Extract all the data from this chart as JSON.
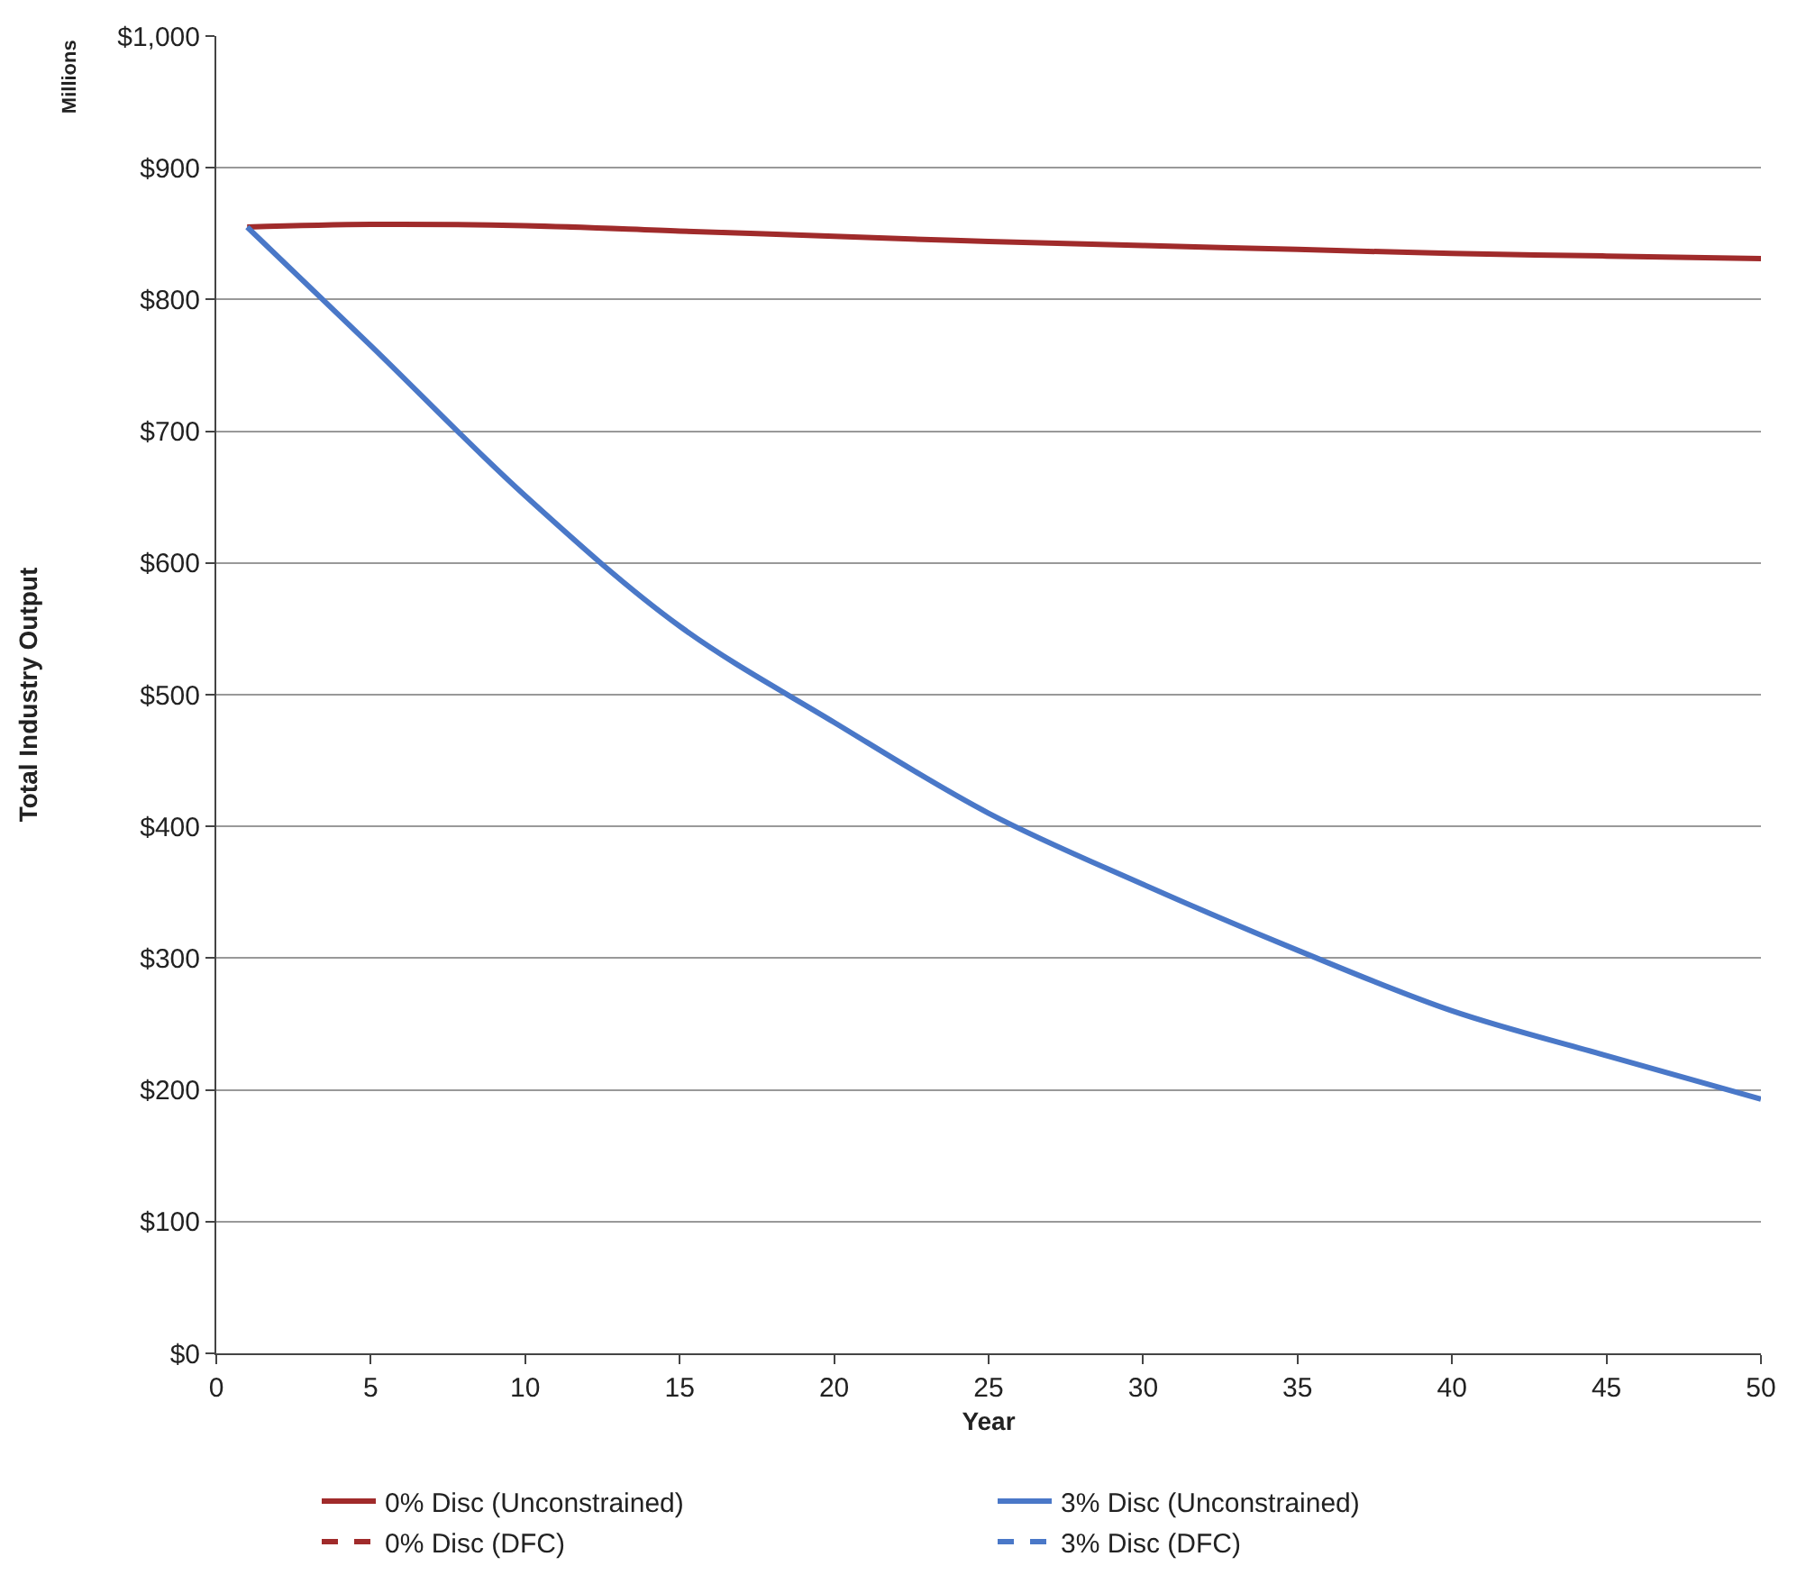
{
  "chart_data": {
    "type": "line",
    "xlabel": "Year",
    "ylabel": "Total Industry Output",
    "annotations": [
      "Millions"
    ],
    "xlim": [
      0,
      50
    ],
    "xticks": [
      0,
      5,
      10,
      15,
      20,
      25,
      30,
      35,
      40,
      45,
      50
    ],
    "ylim": [
      0,
      1000
    ],
    "yticks": [
      {
        "value": 0,
        "label": "$0"
      },
      {
        "value": 100,
        "label": "$100"
      },
      {
        "value": 200,
        "label": "$200"
      },
      {
        "value": 300,
        "label": "$300"
      },
      {
        "value": 400,
        "label": "$400"
      },
      {
        "value": 500,
        "label": "$500"
      },
      {
        "value": 600,
        "label": "$600"
      },
      {
        "value": 700,
        "label": "$700"
      },
      {
        "value": 800,
        "label": "$800"
      },
      {
        "value": 900,
        "label": "$900"
      },
      {
        "value": 1000,
        "label": "$1,000"
      }
    ],
    "grid": "y",
    "legend": "bottom",
    "marker": "none",
    "x": [
      1,
      5,
      10,
      15,
      20,
      25,
      30,
      35,
      40,
      45,
      50
    ],
    "series": [
      {
        "name": "0% Disc (Unconstrained)",
        "color": "#a02b2b",
        "line_style": "solid",
        "values": [
          855,
          857,
          856,
          852,
          848,
          844,
          841,
          838,
          835,
          833,
          831
        ]
      },
      {
        "name": "3% Disc (Unconstrained)",
        "color": "#4a78c8",
        "line_style": "solid",
        "values": [
          855,
          765,
          651,
          552,
          479,
          410,
          356,
          306,
          260,
          226,
          193
        ]
      },
      {
        "name": "0% Disc (DFC)",
        "color": "#a02b2b",
        "line_style": "dashed",
        "values": [
          null,
          null,
          null,
          null,
          null,
          null,
          null,
          null,
          null,
          null,
          null
        ]
      },
      {
        "name": "3% Disc (DFC)",
        "color": "#4a78c8",
        "line_style": "dashed",
        "values": [
          null,
          null,
          null,
          null,
          null,
          null,
          null,
          null,
          null,
          null,
          null
        ]
      }
    ]
  }
}
